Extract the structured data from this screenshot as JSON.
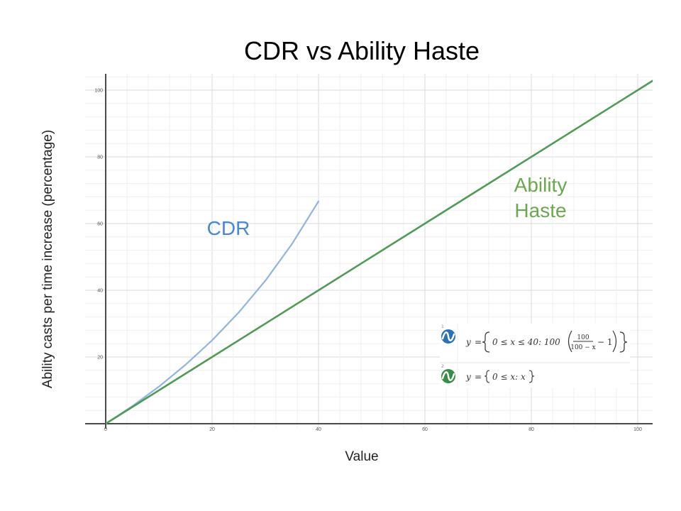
{
  "chart_data": {
    "type": "line",
    "title": "CDR vs Ability Haste",
    "xlabel": "Value",
    "ylabel": "Ability casts per time increase (percentage)",
    "xlim": [
      0,
      103
    ],
    "ylim": [
      0,
      103
    ],
    "x_ticks": [
      "0",
      "20",
      "40",
      "60",
      "80",
      "100"
    ],
    "y_ticks": [
      "0",
      "20",
      "40",
      "60",
      "80",
      "100"
    ],
    "grid": true,
    "series": [
      {
        "name": "CDR",
        "color": "#8fb4df",
        "label_color": "#4a86d8",
        "x": [
          0,
          5,
          10,
          15,
          20,
          25,
          30,
          35,
          40
        ],
        "y": [
          0,
          5.26,
          11.11,
          17.65,
          25.0,
          33.33,
          42.86,
          53.85,
          66.67
        ]
      },
      {
        "name": "Ability Haste",
        "color": "#4f9a55",
        "label_color": "#6aa84f",
        "x": [
          0,
          103
        ],
        "y": [
          0,
          103
        ]
      }
    ],
    "annotations": {
      "cdr_label": "CDR",
      "haste_label_line1": "Ability",
      "haste_label_line2": "Haste"
    },
    "legend": {
      "placement": "bottom-right",
      "rows": [
        {
          "index": "1",
          "color": "#2d70b3",
          "lhs": "y",
          "eq": "=",
          "cond": "0 ≤ x ≤ 40: 100",
          "frac_num": "100",
          "frac_den": "100 − x",
          "tail": "− 1"
        },
        {
          "index": "2",
          "color": "#388c46",
          "lhs": "y",
          "eq": "=",
          "cond": "0 ≤ x: x"
        }
      ]
    }
  }
}
